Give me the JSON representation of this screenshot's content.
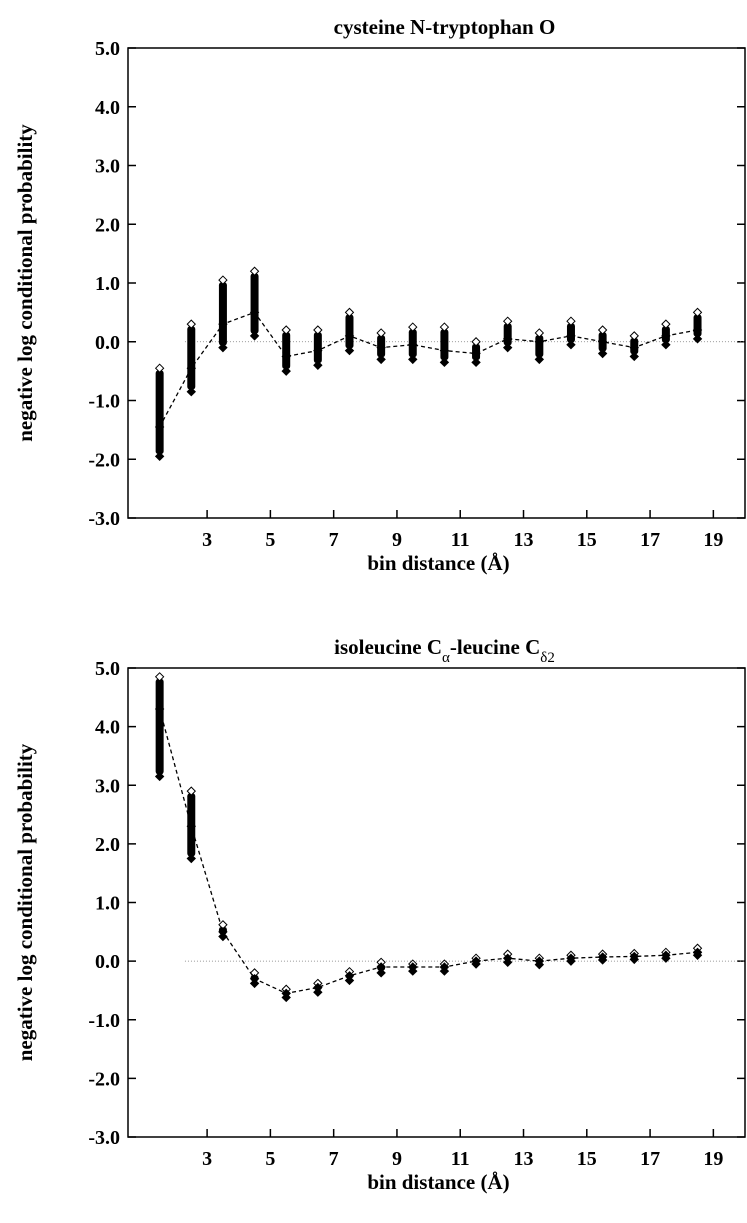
{
  "chart_data": [
    {
      "type": "scatter",
      "title": "cysteine N-tryptophan O",
      "xlabel": "bin distance (Å)",
      "ylabel": "negative log conditional probability",
      "ylim": [
        -3.0,
        5.0
      ],
      "xlim": [
        0.5,
        20.0
      ],
      "yticks": [
        "5.0",
        "4.0",
        "3.0",
        "2.0",
        "1.0",
        "0.0",
        "-1.0",
        "-2.0",
        "-3.0"
      ],
      "xticks": [
        "3",
        "5",
        "7",
        "9",
        "11",
        "13",
        "15",
        "17",
        "19"
      ],
      "reference_line": 0.0,
      "bins": [
        1.5,
        2.5,
        3.5,
        4.5,
        5.5,
        6.5,
        7.5,
        8.5,
        9.5,
        10.5,
        11.5,
        12.5,
        13.5,
        14.5,
        15.5,
        16.5,
        17.5,
        18.5
      ],
      "mean": [
        -1.45,
        -0.45,
        0.3,
        0.5,
        -0.25,
        -0.15,
        0.1,
        -0.1,
        -0.05,
        -0.15,
        -0.2,
        0.05,
        0.0,
        0.1,
        0.0,
        -0.1,
        0.1,
        0.2
      ],
      "min": [
        -1.95,
        -0.85,
        -0.1,
        0.1,
        -0.5,
        -0.4,
        -0.15,
        -0.3,
        -0.3,
        -0.35,
        -0.35,
        -0.1,
        -0.3,
        -0.05,
        -0.2,
        -0.25,
        -0.05,
        0.05
      ],
      "max": [
        -0.45,
        0.3,
        1.05,
        1.2,
        0.2,
        0.2,
        0.5,
        0.15,
        0.25,
        0.25,
        0.0,
        0.35,
        0.15,
        0.35,
        0.2,
        0.1,
        0.3,
        0.5
      ]
    },
    {
      "type": "scatter",
      "title": "isoleucine Cα-leucine Cδ2",
      "xlabel": "bin distance (Å)",
      "ylabel": "negative log conditional probability",
      "ylim": [
        -3.0,
        5.0
      ],
      "xlim": [
        0.5,
        20.0
      ],
      "yticks": [
        "5.0",
        "4.0",
        "3.0",
        "2.0",
        "1.0",
        "0.0",
        "-1.0",
        "-2.0",
        "-3.0"
      ],
      "xticks": [
        "3",
        "5",
        "7",
        "9",
        "11",
        "13",
        "15",
        "17",
        "19"
      ],
      "reference_line": 0.0,
      "bins": [
        1.5,
        2.5,
        3.5,
        4.5,
        5.5,
        6.5,
        7.5,
        8.5,
        9.5,
        10.5,
        11.5,
        12.5,
        13.5,
        14.5,
        15.5,
        16.5,
        17.5,
        18.5
      ],
      "mean": [
        4.3,
        2.3,
        0.5,
        -0.3,
        -0.55,
        -0.45,
        -0.25,
        -0.1,
        -0.1,
        -0.1,
        0.0,
        0.05,
        0.0,
        0.05,
        0.07,
        0.08,
        0.1,
        0.15
      ],
      "min": [
        3.15,
        1.75,
        0.42,
        -0.38,
        -0.62,
        -0.53,
        -0.33,
        -0.2,
        -0.17,
        -0.17,
        -0.05,
        -0.02,
        -0.06,
        0.0,
        0.02,
        0.03,
        0.05,
        0.1
      ],
      "max": [
        4.85,
        2.9,
        0.62,
        -0.2,
        -0.48,
        -0.38,
        -0.18,
        -0.02,
        -0.05,
        -0.05,
        0.05,
        0.12,
        0.05,
        0.1,
        0.12,
        0.13,
        0.15,
        0.22
      ]
    }
  ]
}
